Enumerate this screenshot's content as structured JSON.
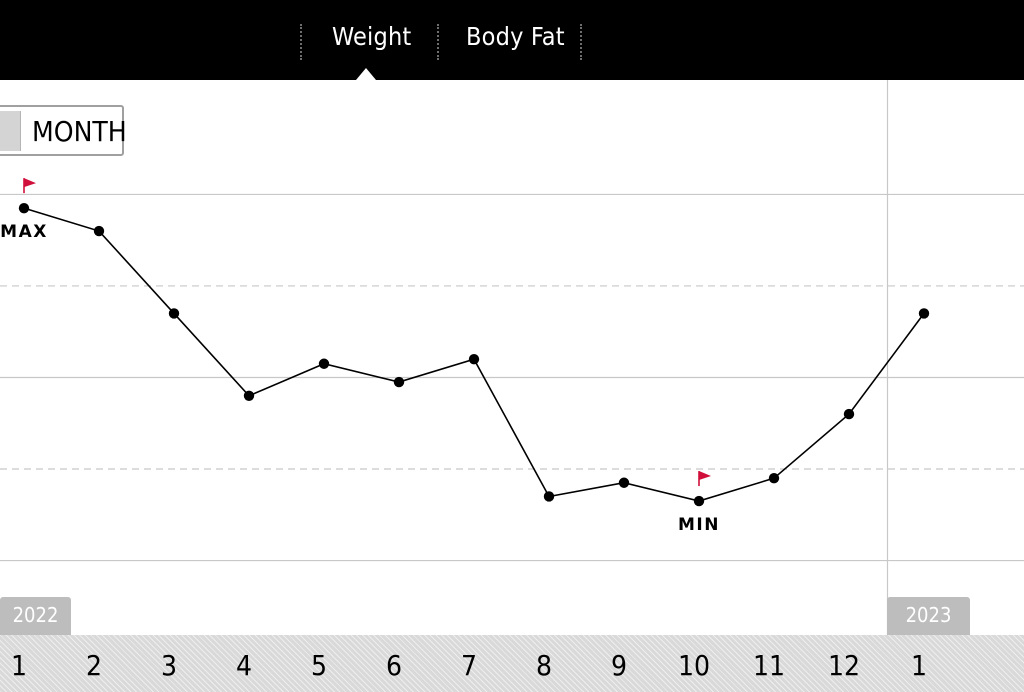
{
  "tabs": [
    {
      "label": "Weight",
      "active": true
    },
    {
      "label": "Body Fat",
      "active": false
    }
  ],
  "period_selector": {
    "label": "MONTH"
  },
  "year_labels": {
    "start": "2022",
    "end": "2023"
  },
  "colors": {
    "background": "#ffffff",
    "bar": "#000000",
    "line": "#000000",
    "flag": "#d0103a",
    "axis_band": "#d9d9d9"
  },
  "chart_data": {
    "type": "line",
    "title": "",
    "xlabel": "",
    "ylabel": "",
    "x": [
      "1",
      "2",
      "3",
      "4",
      "5",
      "6",
      "7",
      "8",
      "9",
      "10",
      "11",
      "12",
      "1"
    ],
    "series": [
      {
        "values": [
          9.7,
          9.2,
          7.4,
          5.6,
          6.3,
          5.9,
          6.4,
          3.4,
          3.7,
          3.3,
          3.8,
          5.2,
          7.4
        ]
      }
    ],
    "gridlines": [
      10,
      8,
      6,
      4,
      2
    ],
    "dashed_gridlines": [
      8,
      4
    ],
    "ylim": [
      1.75,
      12.5
    ],
    "annotations": [
      {
        "label": "MAX",
        "point_index": 0,
        "flag": true
      },
      {
        "label": "MIN",
        "point_index": 9,
        "flag": true
      }
    ]
  }
}
